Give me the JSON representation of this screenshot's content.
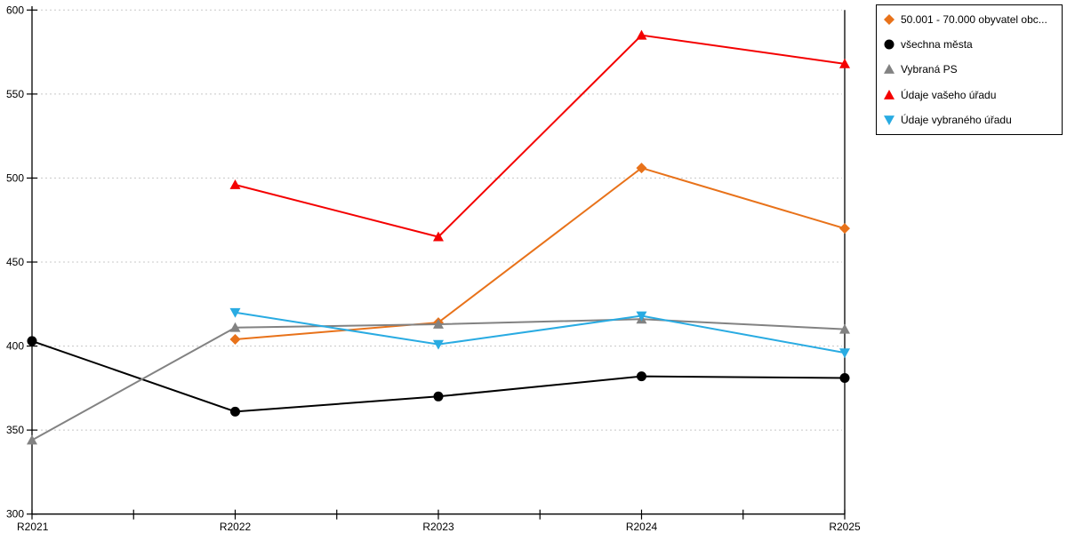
{
  "chart_data": {
    "type": "line",
    "title": "",
    "xlabel": "",
    "ylabel": "",
    "categories": [
      "R2021",
      "R2022",
      "R2023",
      "R2024",
      "R2025"
    ],
    "series": [
      {
        "name": "50.001 - 70.000 obyvatel obc...",
        "color": "#E8721A",
        "marker": "diamond",
        "values": [
          null,
          404,
          414,
          506,
          470
        ]
      },
      {
        "name": "všechna města",
        "color": "#000000",
        "marker": "circle",
        "values": [
          403,
          361,
          370,
          382,
          381
        ]
      },
      {
        "name": "Vybraná PS",
        "color": "#828282",
        "marker": "triangle-up",
        "values": [
          344,
          411,
          413,
          416,
          410
        ]
      },
      {
        "name": "Údaje vašeho úřadu",
        "color": "#F40000",
        "marker": "triangle-up",
        "values": [
          null,
          496,
          465,
          585,
          568
        ]
      },
      {
        "name": "Údaje vybraného úřadu",
        "color": "#29ABE2",
        "marker": "triangle-down",
        "values": [
          null,
          420,
          401,
          418,
          396
        ]
      }
    ],
    "ylim": [
      300,
      600
    ],
    "ytick_step": 50,
    "y_tick_labels": [
      "300",
      "350",
      "400",
      "450",
      "500",
      "550",
      "600"
    ],
    "x_tick_labels": [
      "R2021",
      "R2022",
      "R2023",
      "R2024",
      "R2025"
    ],
    "grid": "horizontal-dotted",
    "grid_color": "#C8C8C8",
    "axis_color": "#000000",
    "legend_position": "outside-top-right"
  }
}
